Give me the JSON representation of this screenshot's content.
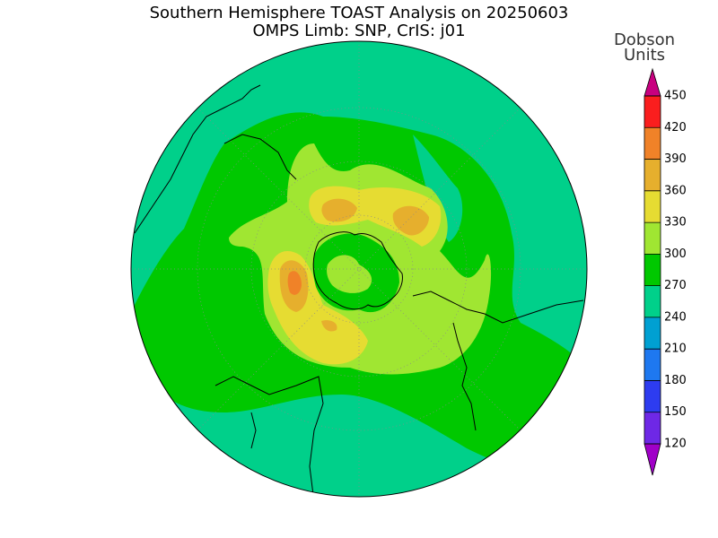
{
  "header": {
    "title": "Southern Hemisphere TOAST Analysis on 20250603",
    "subtitle": "OMPS Limb: SNP, CrIS: j01"
  },
  "colorbar": {
    "label_lines": [
      "Dobson",
      "Units"
    ],
    "ticks": [
      120,
      150,
      180,
      210,
      240,
      270,
      300,
      330,
      360,
      390,
      420,
      450
    ],
    "colors": [
      "#a000c8",
      "#6e28e6",
      "#2d3cf0",
      "#1e78f0",
      "#00a0d2",
      "#00d08a",
      "#00c800",
      "#a0e632",
      "#e6dc32",
      "#e6af2d",
      "#f08228",
      "#fa1e1e",
      "#c8007f"
    ]
  }
}
